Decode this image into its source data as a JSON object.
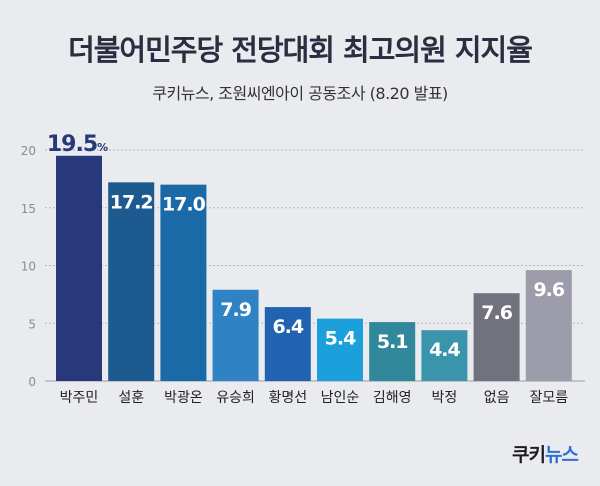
{
  "header": {
    "title": "더불어민주당 전당대회 최고의원 지지율",
    "subtitle": "쿠키뉴스, 조원씨엔아이 공동조사 (8.20 발표)"
  },
  "logo": {
    "text_dark": "쿠키",
    "text_blue": "뉴스"
  },
  "chart_data": {
    "type": "bar",
    "categories": [
      "박주민",
      "설훈",
      "박광온",
      "유승희",
      "황명선",
      "남인순",
      "김해영",
      "박정",
      "없음",
      "잘모름"
    ],
    "values": [
      19.5,
      17.2,
      17.0,
      7.9,
      6.4,
      5.4,
      5.1,
      4.4,
      7.6,
      9.6
    ],
    "value_labels": [
      "19.5",
      "17.2",
      "17.0",
      "7.9",
      "6.4",
      "5.4",
      "5.1",
      "4.4",
      "7.6",
      "9.6"
    ],
    "first_label_unit": "%",
    "bar_colors": [
      "#27397a",
      "#1c5a8f",
      "#1a6aa8",
      "#2f82c4",
      "#2163b0",
      "#1ba0dc",
      "#31889a",
      "#3a94ac",
      "#72727e",
      "#9c9caa"
    ],
    "ylim": [
      0,
      20
    ],
    "yticks": [
      0,
      5,
      10,
      15,
      20
    ],
    "grid": true,
    "xlabel": "",
    "ylabel": ""
  }
}
